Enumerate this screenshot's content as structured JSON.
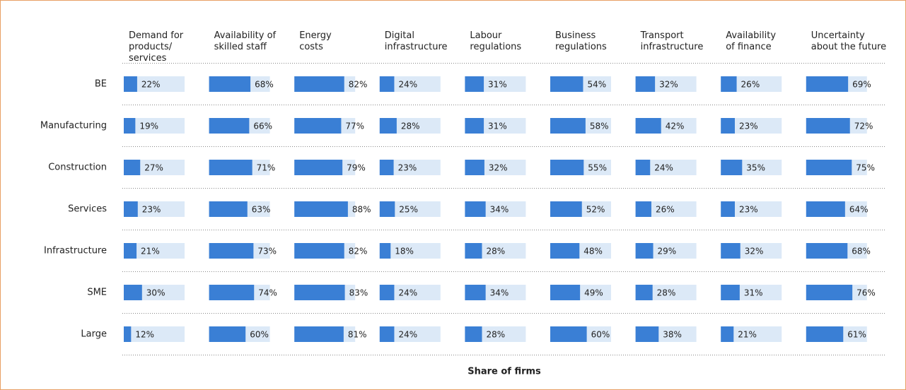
{
  "chart_data": {
    "type": "bar",
    "x_label": "Share of firms",
    "categories": [
      "BE",
      "Manufacturing",
      "Construction",
      "Services",
      "Infrastructure",
      "SME",
      "Large"
    ],
    "xlim": [
      0,
      100
    ],
    "color": "#3a7fd5",
    "track_color": "#dce9f7",
    "series": [
      {
        "name": "Demand for\nproducts/\nservices",
        "values": [
          22,
          19,
          27,
          23,
          21,
          30,
          12
        ],
        "value_labels": [
          "22%",
          "19%",
          "27%",
          "23%",
          "21%",
          "30%",
          "12%"
        ]
      },
      {
        "name": "Availability of\nskilled staff",
        "values": [
          68,
          66,
          71,
          63,
          73,
          74,
          60
        ],
        "value_labels": [
          "68%",
          "66%",
          "71%",
          "63%",
          "73%",
          "74%",
          "60%"
        ]
      },
      {
        "name": "Energy\ncosts",
        "values": [
          82,
          77,
          79,
          88,
          82,
          83,
          81
        ],
        "value_labels": [
          "82%",
          "77%",
          "79%",
          "88%",
          "82%",
          "83%",
          "81%"
        ]
      },
      {
        "name": "Digital\ninfrastructure",
        "values": [
          24,
          28,
          23,
          25,
          18,
          24,
          24
        ],
        "value_labels": [
          "24%",
          "28%",
          "23%",
          "25%",
          "18%",
          "24%",
          "24%"
        ]
      },
      {
        "name": "Labour\nregulations",
        "values": [
          31,
          31,
          32,
          34,
          28,
          34,
          28
        ],
        "value_labels": [
          "31%",
          "31%",
          "32%",
          "34%",
          "28%",
          "34%",
          "28%"
        ]
      },
      {
        "name": "Business\nregulations",
        "values": [
          54,
          58,
          55,
          52,
          48,
          49,
          60
        ],
        "value_labels": [
          "54%",
          "58%",
          "55%",
          "52%",
          "48%",
          "49%",
          "60%"
        ]
      },
      {
        "name": "Transport\ninfrastructure",
        "values": [
          32,
          42,
          24,
          26,
          29,
          28,
          38
        ],
        "value_labels": [
          "32%",
          "42%",
          "24%",
          "26%",
          "29%",
          "28%",
          "38%"
        ]
      },
      {
        "name": "Availability\nof finance",
        "values": [
          26,
          23,
          35,
          23,
          32,
          31,
          21
        ],
        "value_labels": [
          "26%",
          "23%",
          "35%",
          "23%",
          "32%",
          "31%",
          "21%"
        ]
      },
      {
        "name": "Uncertainty\nabout the future",
        "values": [
          69,
          72,
          75,
          64,
          68,
          76,
          61
        ],
        "value_labels": [
          "69%",
          "72%",
          "75%",
          "64%",
          "68%",
          "76%",
          "61%"
        ]
      }
    ]
  }
}
